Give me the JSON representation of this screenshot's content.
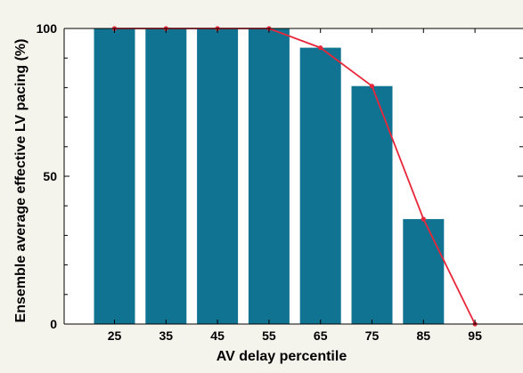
{
  "chart_data": {
    "type": "bar",
    "title": "",
    "xlabel": "AV delay percentile",
    "ylabel": "Ensemble average effective LV pacing (%)",
    "categories": [
      "25",
      "35",
      "45",
      "55",
      "65",
      "75",
      "85",
      "95"
    ],
    "values": [
      100,
      100,
      100,
      100,
      93.5,
      80.5,
      35.5,
      0
    ],
    "line_values": [
      100,
      100,
      100,
      100,
      93.5,
      80.5,
      35.5,
      0
    ],
    "ylim": [
      0,
      100
    ],
    "yticks": [
      0,
      50,
      100
    ],
    "grid": false,
    "colors": {
      "bar": "#107391",
      "line": "#e8283a",
      "background": "#f4f3ec",
      "plot_background": "#ffffff",
      "axis": "#000000"
    }
  }
}
